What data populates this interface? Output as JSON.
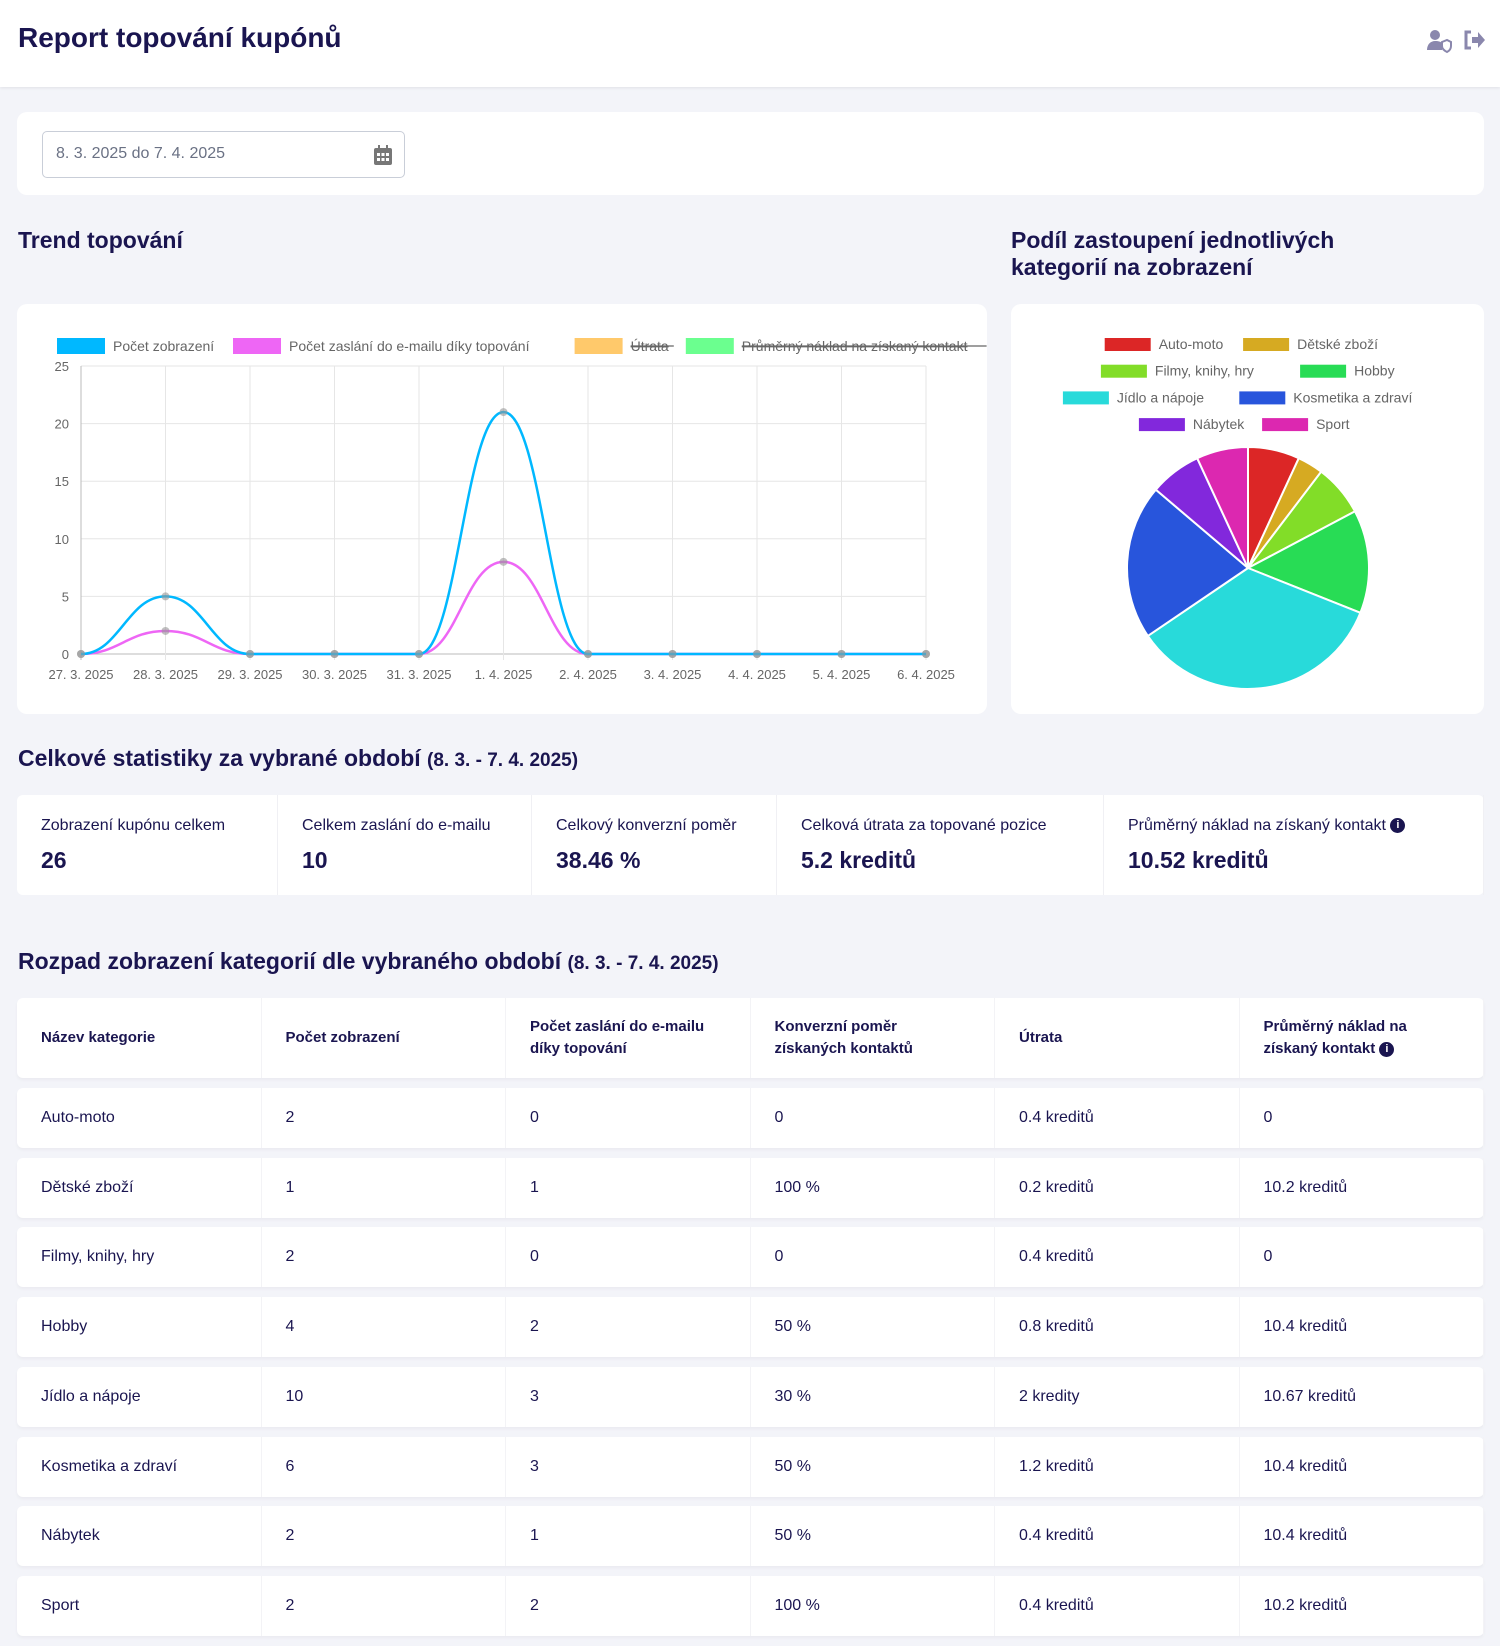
{
  "header": {
    "title": "Report topování kupónů",
    "icons": [
      "user-shield-icon",
      "logout-icon"
    ]
  },
  "filter": {
    "date_range": "8. 3. 2025 do 7. 4. 2025",
    "icon": "calendar-icon"
  },
  "trend": {
    "title": "Trend topování"
  },
  "share": {
    "title_line1": "Podíl zastoupení jednotlivých",
    "title_line2": "kategorií na zobrazení"
  },
  "chart_data": [
    {
      "type": "line",
      "legend_placement": "top",
      "grid": true,
      "x": [
        "27. 3. 2025",
        "28. 3. 2025",
        "29. 3. 2025",
        "30. 3. 2025",
        "31. 3. 2025",
        "1. 4. 2025",
        "2. 4. 2025",
        "3. 4. 2025",
        "4. 4. 2025",
        "5. 4. 2025",
        "6. 4. 2025"
      ],
      "ylim": [
        0,
        25
      ],
      "yticks": [
        0,
        5,
        10,
        15,
        20,
        25
      ],
      "series": [
        {
          "name": "Počet zobrazení",
          "color": "#00b8ff",
          "values": [
            0,
            5,
            0,
            0,
            0,
            21,
            0,
            0,
            0,
            0,
            0
          ],
          "hidden": false
        },
        {
          "name": "Počet zaslání do e-mailu díky topování",
          "color": "#ee66f5",
          "values": [
            0,
            2,
            0,
            0,
            0,
            8,
            0,
            0,
            0,
            0,
            0
          ],
          "hidden": false
        },
        {
          "name": "Útrata",
          "color": "#ffc96b",
          "hidden": true
        },
        {
          "name": "Průměrný náklad na získaný kontakt",
          "color": "#6bff8f",
          "hidden": true
        }
      ]
    },
    {
      "type": "pie",
      "legend_placement": "top",
      "categories": [
        "Auto-moto",
        "Dětské zboží",
        "Filmy, knihy, hry",
        "Hobby",
        "Jídlo a nápoje",
        "Kosmetika a zdraví",
        "Nábytek",
        "Sport"
      ],
      "values": [
        2,
        1,
        2,
        4,
        10,
        6,
        2,
        2
      ],
      "colors": [
        "#dc2626",
        "#d6aa22",
        "#82dd28",
        "#28dc55",
        "#28dada",
        "#2855dc",
        "#8228dc",
        "#dc28b0"
      ]
    }
  ],
  "stats": {
    "title": "Celkové statistiky za vybrané období",
    "period": "(8. 3. - 7. 4. 2025)",
    "items": [
      {
        "label": "Zobrazení kupónu celkem",
        "value": "26"
      },
      {
        "label": "Celkem zaslání do e-mailu",
        "value": "10"
      },
      {
        "label": "Celkový konverzní poměr",
        "value": "38.46 %"
      },
      {
        "label": "Celková útrata za topované pozice",
        "value": "5.2 kreditů"
      },
      {
        "label": "Průměrný náklad na získaný kontakt",
        "value": "10.52 kreditů"
      }
    ]
  },
  "table": {
    "title": "Rozpad zobrazení kategorií dle vybraného období",
    "period": "(8. 3. - 7. 4. 2025)",
    "columns": [
      "Název kategorie",
      "Počet zobrazení",
      "Počet zaslání do e-mailu díky topování",
      "Konverzní poměr získaných kontaktů",
      "Útrata",
      "Průměrný náklad na získaný kontakt"
    ],
    "rows": [
      [
        "Auto-moto",
        "2",
        "0",
        "0",
        "0.4 kreditů",
        "0"
      ],
      [
        "Dětské zboží",
        "1",
        "1",
        "100 %",
        "0.2 kreditů",
        "10.2 kreditů"
      ],
      [
        "Filmy, knihy, hry",
        "2",
        "0",
        "0",
        "0.4 kreditů",
        "0"
      ],
      [
        "Hobby",
        "4",
        "2",
        "50 %",
        "0.8 kreditů",
        "10.4 kreditů"
      ],
      [
        "Jídlo a nápoje",
        "10",
        "3",
        "30 %",
        "2 kredity",
        "10.67 kreditů"
      ],
      [
        "Kosmetika a zdraví",
        "6",
        "3",
        "50 %",
        "1.2 kreditů",
        "10.4 kreditů"
      ],
      [
        "Nábytek",
        "2",
        "1",
        "50 %",
        "0.4 kreditů",
        "10.4 kreditů"
      ],
      [
        "Sport",
        "2",
        "2",
        "100 %",
        "0.4 kreditů",
        "10.2 kreditů"
      ]
    ]
  }
}
